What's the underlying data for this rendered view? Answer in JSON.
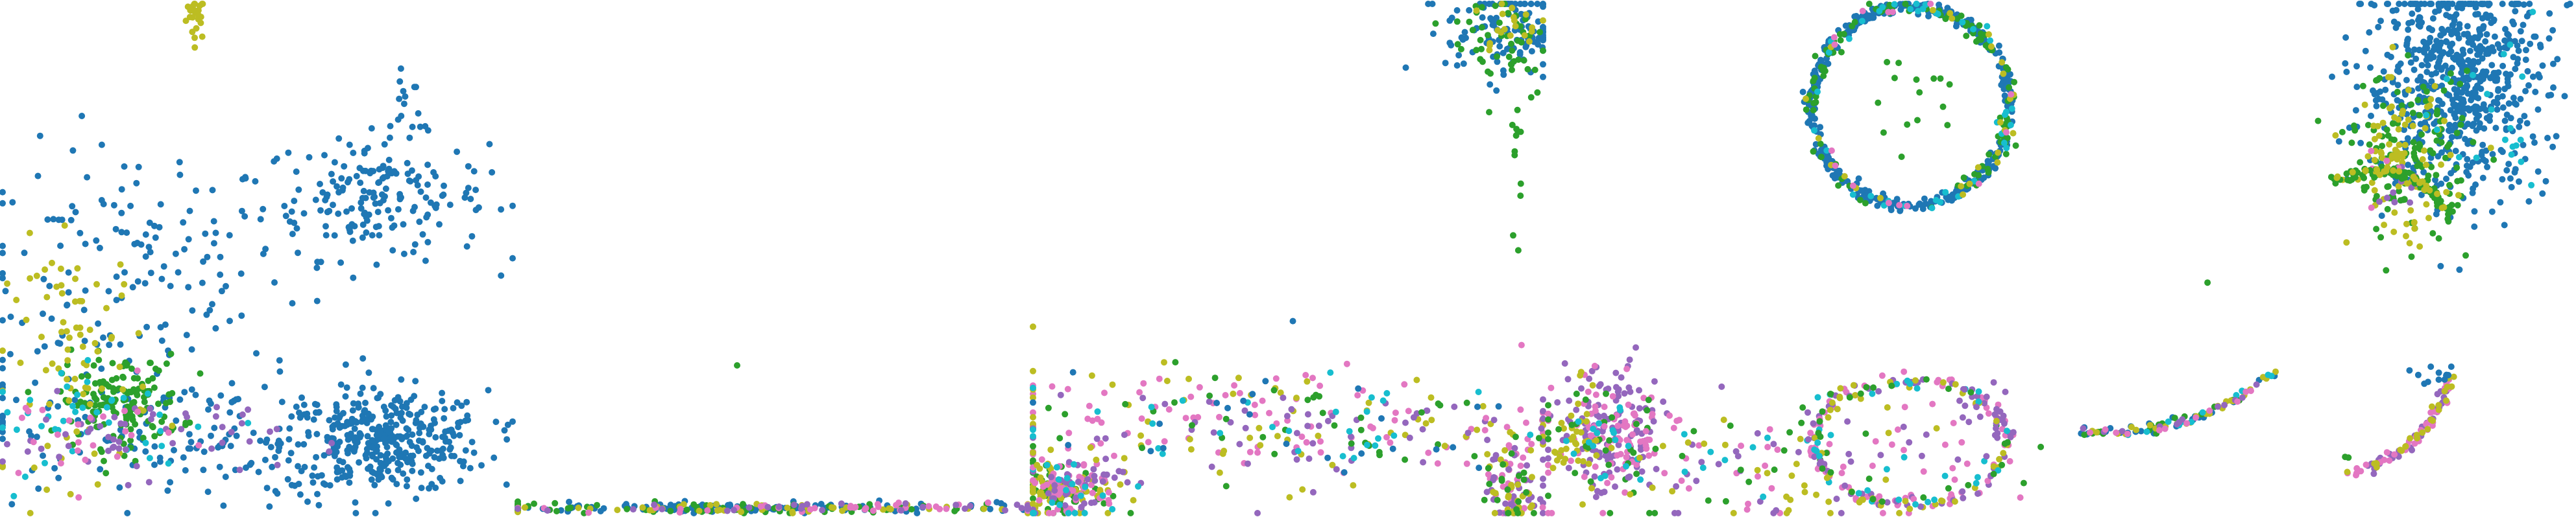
{
  "chart_data": {
    "type": "scatter",
    "title": "",
    "grid": false,
    "legend": "none",
    "colors": {
      "blue": "#1f77b4",
      "green": "#2ca02c",
      "olive": "#bcbd22",
      "cyan": "#17becf",
      "pink": "#e377c2",
      "purple": "#9467bd"
    },
    "panels": [
      {
        "xlim": [
          0,
          10
        ],
        "ylim": [
          0,
          10
        ],
        "clusters": [
          {
            "color": "olive",
            "cx": 3.8,
            "cy": 9.8,
            "sx": 0.1,
            "sy": 0.25,
            "n": 25
          },
          {
            "color": "blue",
            "cx": 2.5,
            "cy": 4.8,
            "sx": 1.5,
            "sy": 1.2,
            "n": 140
          },
          {
            "color": "blue",
            "cx": 7.3,
            "cy": 6.2,
            "sx": 1.1,
            "sy": 0.6,
            "n": 190
          },
          {
            "color": "blue",
            "cx": 7.5,
            "cy": 1.4,
            "sx": 1.0,
            "sy": 0.5,
            "n": 360
          },
          {
            "color": "blue",
            "cx": 3.5,
            "cy": 1.5,
            "sx": 2.3,
            "sy": 0.7,
            "n": 170
          },
          {
            "color": "green",
            "cx": 2.3,
            "cy": 2.2,
            "sx": 0.6,
            "sy": 0.45,
            "n": 150
          },
          {
            "color": "olive",
            "cx": 1.5,
            "cy": 3.0,
            "sx": 0.7,
            "sy": 1.2,
            "n": 80
          },
          {
            "color": "cyan",
            "cx": 2.0,
            "cy": 1.8,
            "sx": 1.4,
            "sy": 0.5,
            "n": 40
          },
          {
            "color": "purple",
            "cx": 2.6,
            "cy": 1.5,
            "sx": 1.4,
            "sy": 0.4,
            "n": 55
          },
          {
            "color": "pink",
            "cx": 1.5,
            "cy": 1.5,
            "sx": 1.0,
            "sy": 0.5,
            "n": 25
          },
          {
            "color": "blue",
            "cx": 7.9,
            "cy": 8.2,
            "sx": 0.15,
            "sy": 0.5,
            "n": 12
          }
        ]
      },
      {
        "xlim": [
          0,
          10
        ],
        "ylim": [
          0,
          10
        ],
        "clusters": [
          {
            "color": "blue",
            "cx": 4.5,
            "cy": 0.1,
            "sx": 3.0,
            "sy": 0.05,
            "n": 120
          },
          {
            "color": "green",
            "cx": 4.2,
            "cy": 0.1,
            "sx": 3.2,
            "sy": 0.05,
            "n": 70
          },
          {
            "color": "olive",
            "cx": 5.0,
            "cy": 0.1,
            "sx": 3.0,
            "sy": 0.05,
            "n": 50
          },
          {
            "color": "pink",
            "cx": 5.5,
            "cy": 0.1,
            "sx": 2.8,
            "sy": 0.05,
            "n": 40
          },
          {
            "color": "purple",
            "cx": 6.0,
            "cy": 0.1,
            "sx": 2.8,
            "sy": 0.05,
            "n": 30
          },
          {
            "color": "green",
            "cx": 4.2,
            "cy": 2.8,
            "sx": 0.05,
            "sy": 0.05,
            "n": 1
          }
        ]
      },
      {
        "xlim": [
          0,
          10
        ],
        "ylim": [
          0,
          10
        ],
        "clusters": [
          {
            "color": "blue",
            "cx": 9.3,
            "cy": 9.5,
            "sx": 0.6,
            "sy": 0.5,
            "n": 120
          },
          {
            "color": "green",
            "cx": 9.2,
            "cy": 9.3,
            "sx": 0.5,
            "sy": 0.6,
            "n": 50
          },
          {
            "color": "olive",
            "cx": 9.4,
            "cy": 9.6,
            "sx": 0.4,
            "sy": 0.3,
            "n": 20
          },
          {
            "color": "green",
            "cx": 9.5,
            "cy": 7.2,
            "sx": 0.05,
            "sy": 0.8,
            "n": 12
          },
          {
            "color": "green",
            "cx": 0.5,
            "cy": 0.4,
            "sx": 0.5,
            "sy": 0.3,
            "n": 60
          },
          {
            "color": "olive",
            "cx": 0.6,
            "cy": 0.5,
            "sx": 0.5,
            "sy": 0.3,
            "n": 60
          },
          {
            "color": "pink",
            "cx": 0.7,
            "cy": 0.5,
            "sx": 0.5,
            "sy": 0.3,
            "n": 50
          },
          {
            "color": "purple",
            "cx": 0.8,
            "cy": 0.6,
            "sx": 0.5,
            "sy": 0.3,
            "n": 40
          },
          {
            "color": "cyan",
            "cx": 0.5,
            "cy": 0.4,
            "sx": 0.5,
            "sy": 0.3,
            "n": 20
          },
          {
            "color": "pink",
            "cx": 4.5,
            "cy": 1.8,
            "sx": 3.2,
            "sy": 0.55,
            "n": 90
          },
          {
            "color": "olive",
            "cx": 4.5,
            "cy": 1.7,
            "sx": 3.2,
            "sy": 0.55,
            "n": 70
          },
          {
            "color": "purple",
            "cx": 5.0,
            "cy": 1.6,
            "sx": 3.0,
            "sy": 0.55,
            "n": 60
          },
          {
            "color": "green",
            "cx": 4.8,
            "cy": 1.8,
            "sx": 3.0,
            "sy": 0.55,
            "n": 40
          },
          {
            "color": "cyan",
            "cx": 4.5,
            "cy": 1.7,
            "sx": 3.0,
            "sy": 0.55,
            "n": 30
          },
          {
            "color": "blue",
            "cx": 4.0,
            "cy": 1.8,
            "sx": 3.0,
            "sy": 0.55,
            "n": 25
          },
          {
            "color": "pink",
            "cx": 9.4,
            "cy": 0.6,
            "sx": 0.25,
            "sy": 0.6,
            "n": 35
          },
          {
            "color": "purple",
            "cx": 9.4,
            "cy": 0.5,
            "sx": 0.25,
            "sy": 0.5,
            "n": 35
          },
          {
            "color": "olive",
            "cx": 9.4,
            "cy": 0.5,
            "sx": 0.25,
            "sy": 0.5,
            "n": 25
          },
          {
            "color": "green",
            "cx": 9.4,
            "cy": 0.5,
            "sx": 0.25,
            "sy": 0.5,
            "n": 20
          }
        ]
      },
      {
        "xlim": [
          0,
          10
        ],
        "ylim": [
          0,
          10
        ],
        "clusters": [
          {
            "color": "blue",
            "ring": true,
            "cx": 7.1,
            "cy": 8.0,
            "r": 1.95,
            "ry": 1.95,
            "sx": 0.06,
            "n": 420
          },
          {
            "color": "green",
            "ring": true,
            "cx": 7.1,
            "cy": 8.0,
            "r": 1.95,
            "ry": 1.95,
            "sx": 0.08,
            "n": 100
          },
          {
            "color": "cyan",
            "ring": true,
            "cx": 7.1,
            "cy": 8.0,
            "r": 1.95,
            "ry": 1.95,
            "sx": 0.08,
            "n": 40
          },
          {
            "color": "olive",
            "ring": true,
            "cx": 7.1,
            "cy": 8.0,
            "r": 1.95,
            "ry": 1.95,
            "sx": 0.08,
            "n": 25
          },
          {
            "color": "pink",
            "ring": true,
            "cx": 7.1,
            "cy": 8.0,
            "r": 1.95,
            "ry": 1.95,
            "sx": 0.08,
            "n": 15
          },
          {
            "color": "green",
            "cx": 7.1,
            "cy": 8.2,
            "sx": 0.7,
            "sy": 0.5,
            "n": 15
          },
          {
            "color": "purple",
            "cx": 1.2,
            "cy": 1.6,
            "sx": 0.5,
            "sy": 0.7,
            "n": 120
          },
          {
            "color": "pink",
            "cx": 1.3,
            "cy": 1.5,
            "sx": 0.55,
            "sy": 0.6,
            "n": 80
          },
          {
            "color": "olive",
            "cx": 0.6,
            "cy": 1.4,
            "sx": 0.25,
            "sy": 0.5,
            "n": 40
          },
          {
            "color": "green",
            "cx": 1.0,
            "cy": 1.4,
            "sx": 0.5,
            "sy": 0.6,
            "n": 25
          },
          {
            "color": "cyan",
            "cx": 1.2,
            "cy": 1.3,
            "sx": 0.5,
            "sy": 0.6,
            "n": 15
          },
          {
            "color": "pink",
            "cx": 4.2,
            "cy": 1.0,
            "sx": 2.2,
            "sy": 0.6,
            "n": 50
          },
          {
            "color": "purple",
            "cx": 4.5,
            "cy": 1.0,
            "sx": 2.2,
            "sy": 0.6,
            "n": 40
          },
          {
            "color": "green",
            "cx": 4.0,
            "cy": 1.0,
            "sx": 2.2,
            "sy": 0.6,
            "n": 30
          },
          {
            "color": "cyan",
            "cx": 4.0,
            "cy": 1.0,
            "sx": 2.2,
            "sy": 0.6,
            "n": 20
          },
          {
            "color": "olive",
            "cx": 4.4,
            "cy": 0.9,
            "sx": 2.2,
            "sy": 0.6,
            "n": 25
          },
          {
            "color": "pink",
            "ring": true,
            "cx": 7.1,
            "cy": 1.4,
            "r": 1.9,
            "ry": 1.2,
            "sx": 0.08,
            "n": 70
          },
          {
            "color": "purple",
            "ring": true,
            "cx": 7.1,
            "cy": 1.4,
            "r": 1.9,
            "ry": 1.2,
            "sx": 0.08,
            "n": 60
          },
          {
            "color": "olive",
            "ring": true,
            "cx": 7.1,
            "cy": 1.4,
            "r": 1.9,
            "ry": 1.2,
            "sx": 0.08,
            "n": 40
          },
          {
            "color": "cyan",
            "ring": true,
            "cx": 7.1,
            "cy": 1.4,
            "r": 1.9,
            "ry": 1.2,
            "sx": 0.08,
            "n": 25
          },
          {
            "color": "green",
            "ring": true,
            "cx": 7.1,
            "cy": 1.4,
            "r": 1.9,
            "ry": 1.2,
            "sx": 0.08,
            "n": 25
          },
          {
            "color": "purple",
            "cx": 8.5,
            "cy": 1.6,
            "sx": 0.3,
            "sy": 0.5,
            "n": 15
          },
          {
            "color": "olive",
            "cx": 5.1,
            "cy": 0.4,
            "sx": 0.3,
            "sy": 0.3,
            "n": 8
          }
        ]
      },
      {
        "xlim": [
          0,
          10
        ],
        "ylim": [
          0,
          10
        ],
        "clusters": [
          {
            "color": "blue",
            "cx": 7.7,
            "cy": 8.5,
            "sx": 0.9,
            "sy": 1.1,
            "n": 650
          },
          {
            "color": "green",
            "cx": 6.8,
            "cy": 7.0,
            "sx": 0.6,
            "sy": 0.8,
            "n": 130
          },
          {
            "color": "olive",
            "cx": 6.6,
            "cy": 6.9,
            "sx": 0.5,
            "sy": 0.8,
            "n": 90
          },
          {
            "color": "cyan",
            "cx": 8.6,
            "cy": 7.2,
            "sx": 0.5,
            "sy": 0.8,
            "n": 20
          },
          {
            "color": "purple",
            "cx": 6.6,
            "cy": 6.2,
            "sx": 0.3,
            "sy": 0.3,
            "n": 10
          },
          {
            "color": "pink",
            "cx": 6.3,
            "cy": 6.6,
            "sx": 0.3,
            "sy": 0.3,
            "n": 6
          },
          {
            "color": "green",
            "arc": true,
            "x0": 5.3,
            "y0": 6.5,
            "x1": 7.6,
            "y1": 5.8,
            "bend": 0.45,
            "spread": 0.06,
            "n": 80
          },
          {
            "color": "olive",
            "arc": true,
            "x0": 5.3,
            "y0": 6.5,
            "x1": 7.6,
            "y1": 5.8,
            "bend": 0.45,
            "spread": 0.06,
            "n": 25
          },
          {
            "color": "green",
            "cx": 2.8,
            "cy": 4.5,
            "sx": 0.02,
            "sy": 0.02,
            "n": 1
          },
          {
            "color": "blue",
            "arc": true,
            "x0": 0.3,
            "y0": 1.6,
            "x1": 4.2,
            "y1": 2.8,
            "bend": -0.2,
            "spread": 0.05,
            "n": 30
          },
          {
            "color": "green",
            "arc": true,
            "x0": 0.3,
            "y0": 1.6,
            "x1": 4.2,
            "y1": 2.8,
            "bend": -0.2,
            "spread": 0.05,
            "n": 20
          },
          {
            "color": "olive",
            "arc": true,
            "x0": 0.3,
            "y0": 1.6,
            "x1": 4.2,
            "y1": 2.8,
            "bend": -0.2,
            "spread": 0.05,
            "n": 25
          },
          {
            "color": "cyan",
            "arc": true,
            "x0": 0.3,
            "y0": 1.6,
            "x1": 4.2,
            "y1": 2.8,
            "bend": -0.2,
            "spread": 0.05,
            "n": 12
          },
          {
            "color": "purple",
            "arc": true,
            "x0": 0.3,
            "y0": 1.6,
            "x1": 4.2,
            "y1": 2.8,
            "bend": -0.2,
            "spread": 0.05,
            "n": 12
          },
          {
            "color": "pink",
            "arc": true,
            "x0": 0.3,
            "y0": 1.6,
            "x1": 4.2,
            "y1": 2.8,
            "bend": -0.2,
            "spread": 0.05,
            "n": 12
          },
          {
            "color": "purple",
            "arc": true,
            "x0": 5.6,
            "y0": 0.8,
            "x1": 7.6,
            "y1": 2.7,
            "bend": -0.3,
            "spread": 0.05,
            "n": 35
          },
          {
            "color": "pink",
            "arc": true,
            "x0": 5.6,
            "y0": 0.8,
            "x1": 7.6,
            "y1": 2.7,
            "bend": -0.3,
            "spread": 0.05,
            "n": 35
          },
          {
            "color": "olive",
            "arc": true,
            "x0": 5.6,
            "y0": 0.8,
            "x1": 7.6,
            "y1": 2.7,
            "bend": -0.3,
            "spread": 0.05,
            "n": 25
          },
          {
            "color": "blue",
            "cx": 7.4,
            "cy": 2.7,
            "sx": 0.3,
            "sy": 0.1,
            "n": 12
          },
          {
            "color": "green",
            "cx": 5.6,
            "cy": 1.1,
            "sx": 0.05,
            "sy": 0.05,
            "n": 2
          }
        ]
      }
    ]
  }
}
